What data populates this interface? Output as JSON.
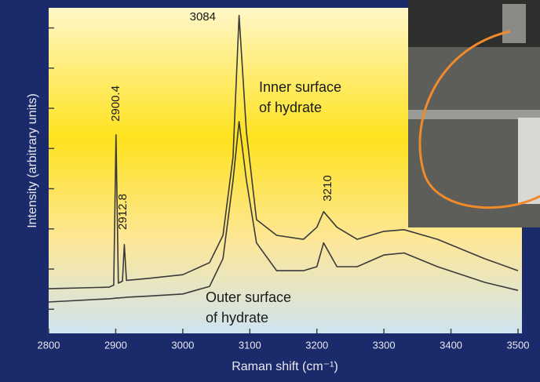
{
  "chart_data": {
    "type": "line",
    "xlabel": "Raman shift (cm⁻¹)",
    "ylabel": "Intensity (arbitrary units)",
    "x": [
      2800,
      2890,
      2897,
      2900.4,
      2904,
      2910,
      2912.8,
      2916,
      2950,
      3000,
      3040,
      3060,
      3075,
      3084,
      3095,
      3110,
      3140,
      3180,
      3200,
      3210,
      3230,
      3260,
      3300,
      3330,
      3380,
      3450,
      3500
    ],
    "series": [
      {
        "color": "#3a3a3a",
        "values": [
          1.51,
          1.55,
          1.6,
          5.34,
          1.65,
          1.7,
          2.61,
          1.72,
          1.77,
          1.86,
          2.16,
          2.84,
          4.79,
          8.31,
          5.4,
          3.23,
          2.84,
          2.74,
          3.04,
          3.43,
          3.04,
          2.74,
          2.94,
          2.98,
          2.74,
          2.26,
          1.96
        ]
      },
      {
        "color": "#3a3a3a",
        "values": [
          1.18,
          1.26,
          1.27,
          1.28,
          1.28,
          1.29,
          1.29,
          1.3,
          1.33,
          1.38,
          1.57,
          2.26,
          4.2,
          5.67,
          4.2,
          2.65,
          1.96,
          1.96,
          2.06,
          2.65,
          2.06,
          2.06,
          2.35,
          2.4,
          2.06,
          1.67,
          1.47
        ]
      }
    ],
    "annotations": [
      "3084",
      "2900.4",
      "2912.8",
      "3210",
      "Inner surface",
      "of hydrate",
      "Outer surface",
      "of hydrate"
    ],
    "xlim": [
      2800,
      3500
    ],
    "xticks": [
      2800,
      2900,
      3000,
      3100,
      3200,
      3300,
      3400,
      3500
    ],
    "ylim": [
      0.4,
      8.5
    ],
    "yticks": [
      1,
      2,
      3,
      4,
      5,
      6,
      7,
      8
    ]
  }
}
